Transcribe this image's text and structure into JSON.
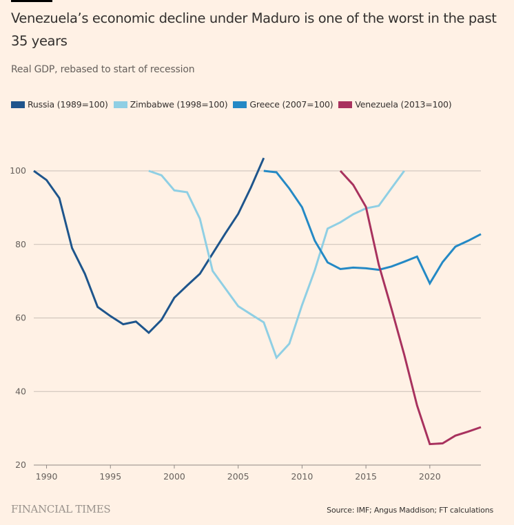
{
  "header": {
    "title": "Venezuela’s economic decline under Maduro is one of the worst in the past 35 years",
    "subtitle": "Real GDP, rebased to start of recession"
  },
  "legend": [
    {
      "label": "Russia (1989=100)",
      "color": "#1e558c"
    },
    {
      "label": "Zimbabwe (1998=100)",
      "color": "#8fcfe4"
    },
    {
      "label": "Greece (2007=100)",
      "color": "#2489c5"
    },
    {
      "label": "Venezuela (2013=100)",
      "color": "#a8325e"
    }
  ],
  "footer": {
    "logo": "FINANCIAL TIMES",
    "source": "Source: IMF; Angus Maddison; FT calculations"
  },
  "chart_data": {
    "type": "line",
    "title": "Venezuela’s economic decline under Maduro is one of the worst in the past 35 years",
    "subtitle": "Real GDP, rebased to start of recession",
    "xlabel": "",
    "ylabel": "",
    "xlim": [
      1989,
      2024
    ],
    "ylim": [
      20,
      100
    ],
    "x_ticks": [
      1990,
      1995,
      2000,
      2005,
      2010,
      2015,
      2020
    ],
    "y_ticks": [
      20,
      40,
      60,
      80,
      100
    ],
    "grid": "horizontal",
    "legend_position": "top-left",
    "series": [
      {
        "name": "Russia (1989=100)",
        "color": "#1e558c",
        "x": [
          1989,
          1990,
          1991,
          1992,
          1993,
          1994,
          1995,
          1996,
          1997,
          1998,
          1999,
          2000,
          2001,
          2002,
          2003,
          2004,
          2005,
          2006,
          2007
        ],
        "values": [
          100,
          97.5,
          92.6,
          79,
          72,
          63,
          60.5,
          58.3,
          59,
          56,
          59.5,
          65.5,
          68.8,
          72,
          77.5,
          83,
          88.3,
          95.5,
          103.5
        ]
      },
      {
        "name": "Zimbabwe (1998=100)",
        "color": "#8fcfe4",
        "x": [
          1998,
          1999,
          2000,
          2001,
          2002,
          2003,
          2004,
          2005,
          2006,
          2007,
          2008,
          2009,
          2010,
          2011,
          2012,
          2013,
          2014,
          2015,
          2016,
          2017,
          2018
        ],
        "values": [
          100,
          98.8,
          94.7,
          94.2,
          87,
          72.8,
          68,
          63.2,
          61,
          58.8,
          49.2,
          53,
          63.5,
          73,
          84.3,
          86,
          88.2,
          89.8,
          90.5,
          95.3,
          100
        ]
      },
      {
        "name": "Greece (2007=100)",
        "color": "#2489c5",
        "x": [
          2007,
          2008,
          2009,
          2010,
          2011,
          2012,
          2013,
          2014,
          2015,
          2016,
          2017,
          2018,
          2019,
          2020,
          2021,
          2022,
          2023,
          2024
        ],
        "values": [
          100,
          99.6,
          95.2,
          90.1,
          81,
          75.1,
          73.3,
          73.7,
          73.5,
          73.1,
          74,
          75.3,
          76.7,
          69.4,
          75.2,
          79.4,
          81,
          82.8
        ]
      },
      {
        "name": "Venezuela (2013=100)",
        "color": "#a8325e",
        "x": [
          2013,
          2014,
          2015,
          2016,
          2017,
          2018,
          2019,
          2020,
          2021,
          2022,
          2023,
          2024
        ],
        "values": [
          100,
          96.2,
          90.2,
          74.5,
          62.5,
          50,
          36.2,
          25.7,
          25.9,
          28,
          29.1,
          30.3
        ]
      }
    ]
  }
}
